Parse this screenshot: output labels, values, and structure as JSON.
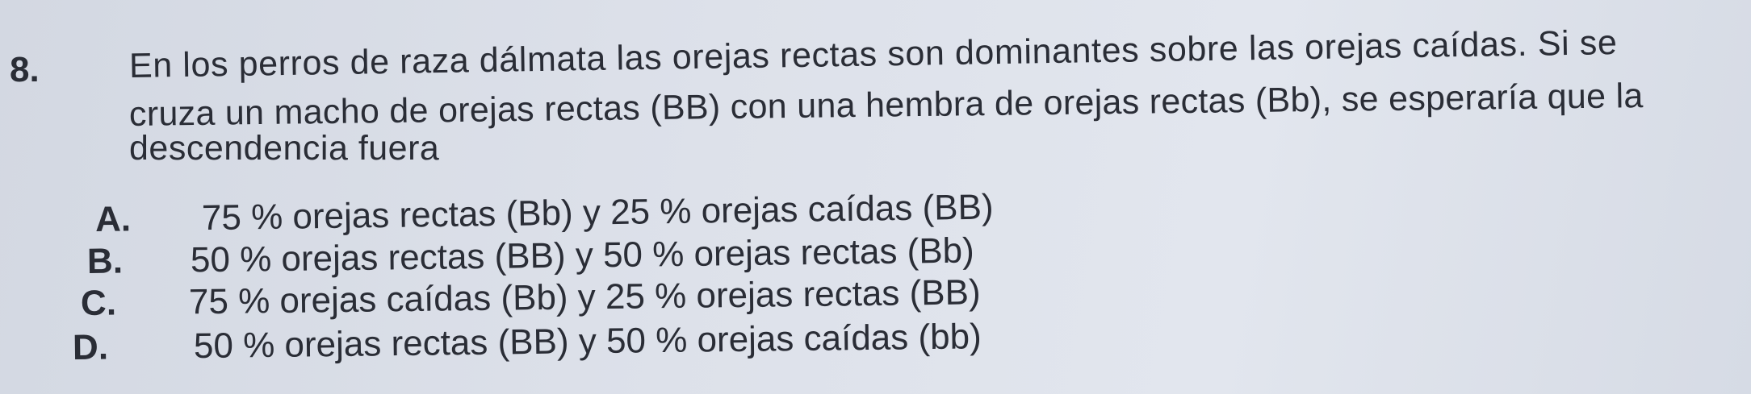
{
  "question": {
    "number": "8.",
    "lines": [
      "En los perros de raza dálmata las orejas rectas son dominantes sobre las orejas caídas. Si se",
      "cruza un macho de orejas rectas (BB) con una hembra de orejas rectas (Bb), se esperaría que la",
      "descendencia fuera"
    ]
  },
  "options": [
    {
      "letter": "A.",
      "text": "75 % orejas rectas (Bb) y 25 % orejas caídas (BB)"
    },
    {
      "letter": "B.",
      "text": "50 % orejas rectas (BB) y 50 % orejas rectas (Bb)"
    },
    {
      "letter": "C.",
      "text": "75 % orejas caídas (Bb) y 25 % orejas rectas (BB)"
    },
    {
      "letter": "D.",
      "text": "50 % orejas rectas (BB) y 50 % orejas caídas (bb)"
    }
  ]
}
